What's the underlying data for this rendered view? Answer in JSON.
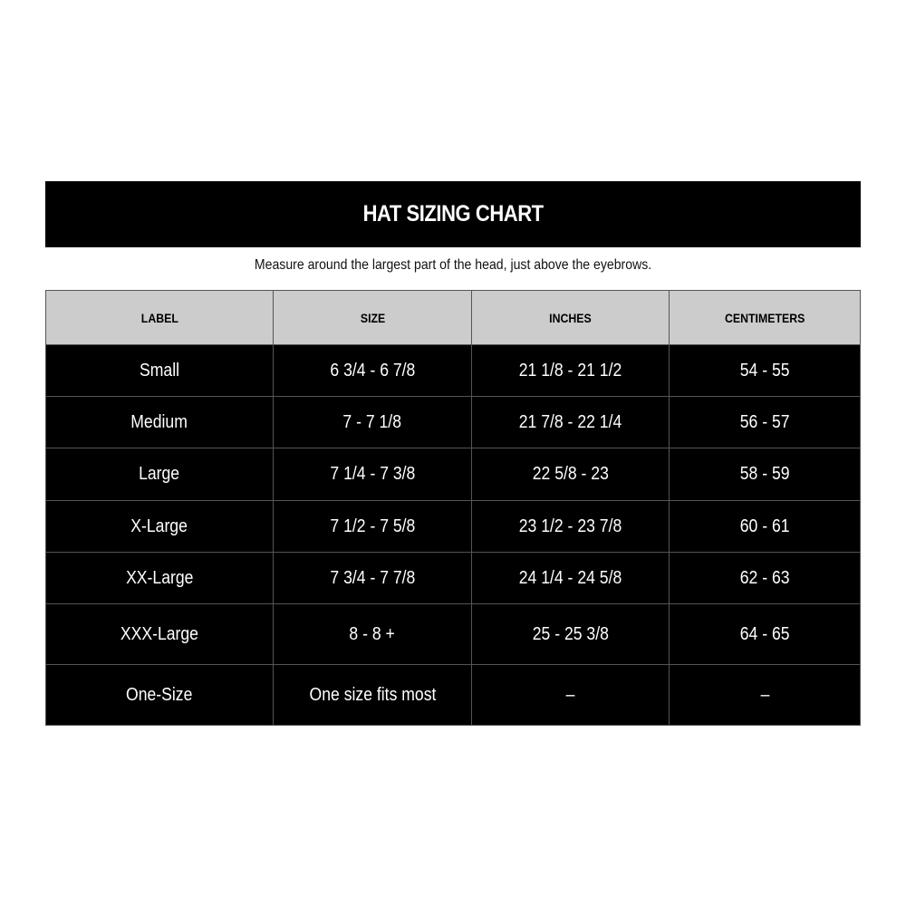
{
  "title": "HAT SIZING CHART",
  "subtitle": "Measure around the largest part of the head, just above the eyebrows.",
  "table": {
    "headers": [
      "LABEL",
      "SIZE",
      "INCHES",
      "CENTIMETERS"
    ],
    "rows": [
      [
        "Small",
        "6 3/4 - 6 7/8",
        "21 1/8 - 21 1/2",
        "54 - 55"
      ],
      [
        "Medium",
        "7 - 7 1/8",
        "21 7/8 - 22 1/4",
        "56 - 57"
      ],
      [
        "Large",
        "7 1/4 - 7 3/8",
        "22 5/8 - 23",
        "58 - 59"
      ],
      [
        "X-Large",
        "7 1/2 - 7 5/8",
        "23 1/2 - 23 7/8",
        "60 - 61"
      ],
      [
        "XX-Large",
        "7 3/4 - 7 7/8",
        "24 1/4 - 24 5/8",
        "62 - 63"
      ],
      [
        "XXX-Large",
        "8 - 8 +",
        "25 - 25 3/8",
        "64 - 65"
      ],
      [
        "One-Size",
        "One size fits most",
        "–",
        "–"
      ]
    ]
  },
  "colors": {
    "header_bg": "#cccccc",
    "row_bg": "#000000",
    "border": "#555555"
  }
}
